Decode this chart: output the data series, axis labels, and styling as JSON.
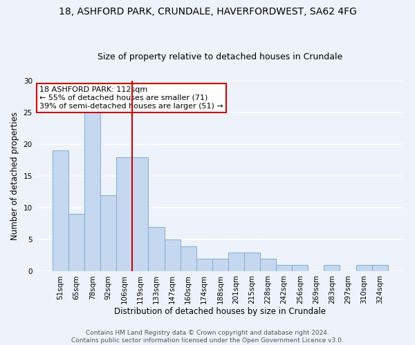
{
  "title1": "18, ASHFORD PARK, CRUNDALE, HAVERFORDWEST, SA62 4FG",
  "title2": "Size of property relative to detached houses in Crundale",
  "xlabel": "Distribution of detached houses by size in Crundale",
  "ylabel": "Number of detached properties",
  "categories": [
    "51sqm",
    "65sqm",
    "78sqm",
    "92sqm",
    "106sqm",
    "119sqm",
    "133sqm",
    "147sqm",
    "160sqm",
    "174sqm",
    "188sqm",
    "201sqm",
    "215sqm",
    "228sqm",
    "242sqm",
    "256sqm",
    "269sqm",
    "283sqm",
    "297sqm",
    "310sqm",
    "324sqm"
  ],
  "values": [
    19,
    9,
    25,
    12,
    18,
    18,
    7,
    5,
    4,
    2,
    2,
    3,
    3,
    2,
    1,
    1,
    0,
    1,
    0,
    1,
    1
  ],
  "bar_color": "#c5d8f0",
  "bar_edge_color": "#7aadd4",
  "bar_edge_width": 0.7,
  "vline_x_index": 4,
  "vline_color": "#cc0000",
  "annotation_text": "18 ASHFORD PARK: 112sqm\n← 55% of detached houses are smaller (71)\n39% of semi-detached houses are larger (51) →",
  "annotation_box_edgecolor": "#cc0000",
  "annotation_box_facecolor": "#ffffff",
  "footer_text": "Contains HM Land Registry data © Crown copyright and database right 2024.\nContains public sector information licensed under the Open Government Licence v3.0.",
  "ylim": [
    0,
    30
  ],
  "background_color": "#eef2fa",
  "grid_color": "#ffffff",
  "title1_fontsize": 10,
  "title2_fontsize": 9,
  "xlabel_fontsize": 8.5,
  "ylabel_fontsize": 8.5,
  "tick_fontsize": 7.5,
  "annotation_fontsize": 8,
  "footer_fontsize": 6.5
}
